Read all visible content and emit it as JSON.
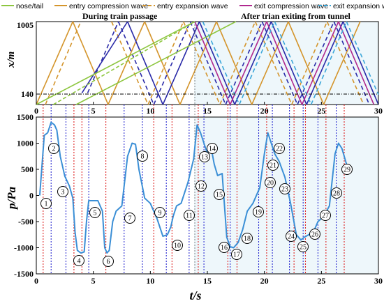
{
  "chart_data": [
    {
      "type": "line",
      "panel": "top",
      "ylabel": "x/m",
      "xlim": [
        0,
        30
      ],
      "ylim_ticks": [
        "1005",
        "140"
      ],
      "x_ticks": [
        "0",
        "5",
        "10",
        "15",
        "20",
        "25",
        "30"
      ],
      "region_labels": [
        "During train passage",
        "After trian exiting from tunnel"
      ],
      "exit_time": 13.9,
      "legend": [
        {
          "label": "nose/tail",
          "color": "#8dc63f",
          "dash": "solid"
        },
        {
          "label": "entry compression wave",
          "color": "#d4952c",
          "dash": "solid"
        },
        {
          "label": "entry expansion wave",
          "color": "#d4952c",
          "dash": "dash"
        },
        {
          "label": "exit compression wave",
          "color": "#b0288f",
          "dash": "solid"
        },
        {
          "label": "exit expansion wave",
          "color": "#3aa6d9",
          "dash": "dash"
        }
      ],
      "wave_segments": [
        {
          "kind": "orange-solid",
          "t": [
            0,
            3.2
          ],
          "x": [
            0,
            1005
          ]
        },
        {
          "kind": "orange-solid",
          "t": [
            3.2,
            6.3
          ],
          "x": [
            1005,
            0
          ]
        },
        {
          "kind": "orange-solid",
          "t": [
            6.3,
            9.5
          ],
          "x": [
            0,
            1005
          ]
        },
        {
          "kind": "orange-solid",
          "t": [
            9.5,
            12.6
          ],
          "x": [
            1005,
            0
          ]
        },
        {
          "kind": "orange-solid",
          "t": [
            12.6,
            15.8
          ],
          "x": [
            0,
            1005
          ]
        },
        {
          "kind": "orange-solid",
          "t": [
            15.8,
            18.9
          ],
          "x": [
            1005,
            0
          ]
        },
        {
          "kind": "orange-solid",
          "t": [
            18.9,
            22.1
          ],
          "x": [
            0,
            1005
          ]
        },
        {
          "kind": "orange-solid",
          "t": [
            22.1,
            25.2
          ],
          "x": [
            1005,
            0
          ]
        },
        {
          "kind": "orange-solid",
          "t": [
            25.2,
            28.4
          ],
          "x": [
            0,
            1005
          ]
        },
        {
          "kind": "orange-dash",
          "t": [
            0.8,
            3.9
          ],
          "x": [
            0,
            1005
          ]
        },
        {
          "kind": "orange-dash",
          "t": [
            6.6,
            9.8
          ],
          "x": [
            1005,
            0
          ]
        },
        {
          "kind": "orange-dash",
          "t": [
            9.8,
            12.9
          ],
          "x": [
            0,
            1005
          ]
        },
        {
          "kind": "orange-dash",
          "t": [
            12.9,
            16.1
          ],
          "x": [
            1005,
            0
          ]
        },
        {
          "kind": "orange-dash",
          "t": [
            16.1,
            19.2
          ],
          "x": [
            0,
            1005
          ]
        },
        {
          "kind": "orange-dash",
          "t": [
            19.2,
            22.4
          ],
          "x": [
            1005,
            0
          ]
        },
        {
          "kind": "orange-dash",
          "t": [
            22.4,
            25.5
          ],
          "x": [
            0,
            1005
          ]
        },
        {
          "kind": "orange-dash",
          "t": [
            25.5,
            28.7
          ],
          "x": [
            1005,
            0
          ]
        },
        {
          "kind": "blue-solid",
          "t": [
            4.0,
            8.0
          ],
          "x": [
            140,
            1005
          ]
        },
        {
          "kind": "blue-solid",
          "t": [
            8.0,
            11.1
          ],
          "x": [
            1005,
            0
          ]
        },
        {
          "kind": "blue-solid",
          "t": [
            11.1,
            14.3
          ],
          "x": [
            0,
            1005
          ]
        },
        {
          "kind": "blue-solid",
          "t": [
            14.3,
            17.4
          ],
          "x": [
            1005,
            0
          ]
        },
        {
          "kind": "blue-solid",
          "t": [
            17.4,
            20.6
          ],
          "x": [
            0,
            1005
          ]
        },
        {
          "kind": "blue-solid",
          "t": [
            20.6,
            23.7
          ],
          "x": [
            1005,
            0
          ]
        },
        {
          "kind": "blue-solid",
          "t": [
            23.7,
            26.9
          ],
          "x": [
            0,
            1005
          ]
        },
        {
          "kind": "blue-solid",
          "t": [
            26.9,
            30
          ],
          "x": [
            1005,
            0
          ]
        },
        {
          "kind": "blue-dash",
          "t": [
            4.5,
            7.2
          ],
          "x": [
            140,
            1005
          ]
        },
        {
          "kind": "blue-dash",
          "t": [
            7.2,
            10.3
          ],
          "x": [
            1005,
            0
          ]
        },
        {
          "kind": "blue-dash",
          "t": [
            10.3,
            13.5
          ],
          "x": [
            0,
            1005
          ]
        },
        {
          "kind": "blue-dash",
          "t": [
            13.5,
            16.6
          ],
          "x": [
            1005,
            0
          ]
        },
        {
          "kind": "blue-dash",
          "t": [
            16.6,
            19.8
          ],
          "x": [
            0,
            1005
          ]
        },
        {
          "kind": "blue-dash",
          "t": [
            19.8,
            22.9
          ],
          "x": [
            1005,
            0
          ]
        },
        {
          "kind": "blue-dash",
          "t": [
            22.9,
            26.1
          ],
          "x": [
            0,
            1005
          ]
        },
        {
          "kind": "blue-dash",
          "t": [
            26.1,
            29.2
          ],
          "x": [
            1005,
            0
          ]
        },
        {
          "kind": "nose",
          "t": [
            0,
            13.9
          ],
          "x": [
            0,
            1005
          ]
        },
        {
          "kind": "tail",
          "t": [
            3.5,
            17.5
          ],
          "x": [
            0,
            1005
          ]
        },
        {
          "kind": "green-dash",
          "t": [
            1.5,
            13.9
          ],
          "x": [
            0,
            1005
          ]
        },
        {
          "kind": "exit-solid",
          "t": [
            13.9,
            17.0
          ],
          "x": [
            1005,
            0
          ]
        },
        {
          "kind": "exit-solid",
          "t": [
            17.0,
            20.2
          ],
          "x": [
            0,
            1005
          ]
        },
        {
          "kind": "exit-solid",
          "t": [
            20.2,
            23.3
          ],
          "x": [
            1005,
            0
          ]
        },
        {
          "kind": "exit-solid",
          "t": [
            23.3,
            26.5
          ],
          "x": [
            0,
            1005
          ]
        },
        {
          "kind": "exit-solid",
          "t": [
            26.5,
            29.6
          ],
          "x": [
            1005,
            0
          ]
        },
        {
          "kind": "exit-dash",
          "t": [
            14.6,
            17.8
          ],
          "x": [
            1005,
            0
          ]
        },
        {
          "kind": "exit-dash",
          "t": [
            17.8,
            20.9
          ],
          "x": [
            0,
            1005
          ]
        },
        {
          "kind": "exit-dash",
          "t": [
            20.9,
            24.1
          ],
          "x": [
            1005,
            0
          ]
        },
        {
          "kind": "exit-dash",
          "t": [
            24.1,
            27.2
          ],
          "x": [
            0,
            1005
          ]
        },
        {
          "kind": "exit-dash",
          "t": [
            27.2,
            30
          ],
          "x": [
            1005,
            120
          ]
        }
      ]
    },
    {
      "type": "line",
      "panel": "bottom",
      "xlabel": "t/s",
      "ylabel": "p/Pa",
      "xlim": [
        0,
        30
      ],
      "ylim": [
        -1500,
        1500
      ],
      "x_ticks": [
        "0",
        "5",
        "10",
        "15",
        "20",
        "25",
        "30"
      ],
      "y_ticks": [
        "-1500",
        "-1000",
        "-500",
        "0",
        "500",
        "1000",
        "1500"
      ],
      "series": [
        {
          "color": "#3b8fd6",
          "t": [
            0.3,
            0.7,
            1.0,
            1.3,
            1.6,
            1.8,
            2.1,
            2.5,
            2.9,
            3.2,
            3.4,
            3.6,
            3.9,
            4.2,
            4.4,
            4.6,
            4.8,
            5.4,
            5.8,
            6.0,
            6.2,
            6.4,
            6.7,
            7.0,
            7.5,
            8.0,
            8.4,
            8.7,
            9.0,
            9.5,
            10.0,
            10.6,
            11.1,
            11.5,
            11.8,
            12.0,
            12.3,
            12.7,
            13.3,
            13.8,
            14.1,
            14.4,
            14.7,
            15.0,
            15.3,
            15.6,
            15.9,
            16.3,
            16.7,
            17.0,
            17.3,
            17.7,
            18.1,
            18.5,
            19.0,
            19.6,
            20.0,
            20.3,
            20.6,
            20.9,
            21.3,
            21.8,
            22.3,
            22.8,
            23.2,
            23.5,
            23.9,
            24.3,
            24.7,
            25.2,
            25.7,
            26.2,
            26.5,
            26.8,
            27.2,
            27.6
          ],
          "p": [
            0,
            1150,
            1200,
            1400,
            1350,
            1250,
            750,
            370,
            180,
            -50,
            -700,
            -1050,
            -1100,
            -1080,
            -500,
            -100,
            -100,
            -100,
            -300,
            -1000,
            -1100,
            -1050,
            -500,
            -300,
            -200,
            750,
            1000,
            980,
            500,
            -50,
            -150,
            -450,
            -780,
            -750,
            -600,
            -400,
            -200,
            -150,
            250,
            700,
            1350,
            1200,
            1000,
            800,
            950,
            600,
            380,
            420,
            -800,
            -980,
            -1000,
            -900,
            -650,
            -300,
            -150,
            150,
            800,
            1200,
            1000,
            800,
            650,
            350,
            -150,
            -750,
            -850,
            -800,
            -750,
            -700,
            -500,
            -400,
            -200,
            800,
            1000,
            900,
            600,
            550
          ]
        }
      ],
      "circled_labels": [
        "1",
        "2",
        "3",
        "4",
        "5",
        "6",
        "7",
        "8",
        "9",
        "10",
        "11",
        "12",
        "13",
        "14",
        "15",
        "16",
        "17",
        "18",
        "19",
        "20",
        "21",
        "22",
        "23",
        "24",
        "25",
        "26",
        "27",
        "28",
        "29"
      ],
      "blue_event_times": [
        1.3,
        2.6,
        4.6,
        7.7,
        9.3,
        11.4,
        13.4,
        14.7,
        17.0,
        19.5,
        20.7,
        22.2,
        23.4,
        24.7,
        26.3
      ],
      "red_event_times": [
        0.6,
        3.3,
        4.0,
        6.1,
        10.3,
        11.9,
        14.2,
        16.8,
        17.6,
        20.2,
        22.6,
        23.6,
        25.4,
        27.0
      ]
    }
  ]
}
